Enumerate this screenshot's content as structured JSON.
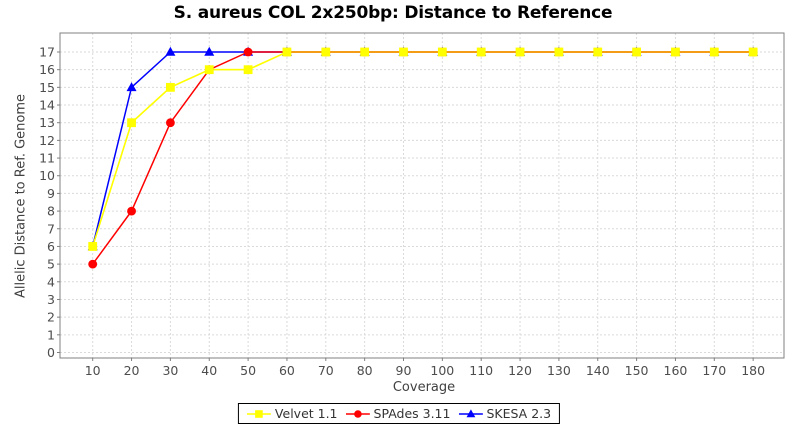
{
  "title": "S. aureus COL 2x250bp: Distance to Reference",
  "chart_data": {
    "type": "line",
    "x": [
      10,
      20,
      30,
      40,
      50,
      60,
      70,
      80,
      90,
      100,
      110,
      120,
      130,
      140,
      150,
      160,
      170,
      180
    ],
    "xlabel": "Coverage",
    "ylabel": "Allelic Distance to Ref. Genome",
    "xlim": [
      10,
      180
    ],
    "ylim": [
      0,
      17
    ],
    "xtick_step": 10,
    "ytick_step": 1,
    "grid": true,
    "legend_position": "bottom-center",
    "series": [
      {
        "name": "Velvet 1.1",
        "color": "#FFFF00",
        "marker": "square",
        "values": [
          6,
          13,
          15,
          16,
          16,
          17,
          17,
          17,
          17,
          17,
          17,
          17,
          17,
          17,
          17,
          17,
          17,
          17
        ]
      },
      {
        "name": "SPAdes 3.11",
        "color": "#FF0000",
        "marker": "circle",
        "values": [
          5,
          8,
          13,
          16,
          17,
          17,
          17,
          17,
          17,
          17,
          17,
          17,
          17,
          17,
          17,
          17,
          17,
          17
        ]
      },
      {
        "name": "SKESA 2.3",
        "color": "#0000FF",
        "marker": "triangle",
        "values": [
          6,
          15,
          17,
          17,
          17,
          17,
          17,
          17,
          17,
          17,
          17,
          17,
          17,
          17,
          17,
          17,
          17,
          17
        ]
      }
    ]
  },
  "style": {
    "background": "#FFFFFF",
    "plot_border_color": "#808080",
    "grid_color": "#DADADA",
    "tick_color": "#808080",
    "tick_label_color": "#4D4D4D",
    "axis_label_color": "#404040",
    "title_color": "#000000",
    "legend_border_color": "#000000"
  }
}
